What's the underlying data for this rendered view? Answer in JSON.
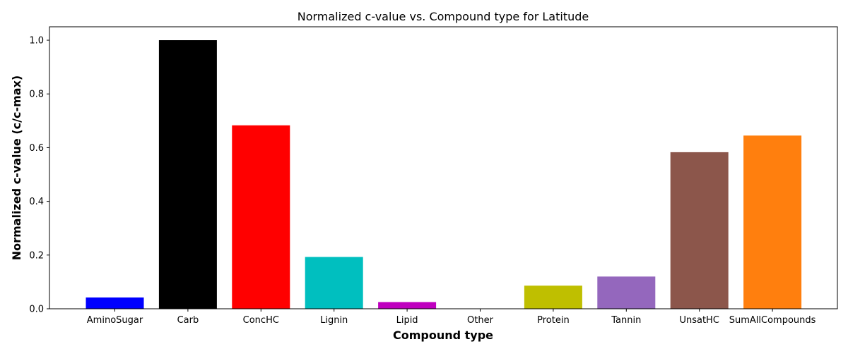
{
  "chart_data": {
    "type": "bar",
    "title": "Normalized c-value vs. Compound type for Latitude",
    "xlabel": "Compound type",
    "ylabel": "Normalized c-value (c/c-max)",
    "categories": [
      "AminoSugar",
      "Carb",
      "ConcHC",
      "Lignin",
      "Lipid",
      "Other",
      "Protein",
      "Tannin",
      "UnsatHC",
      "SumAllCompounds"
    ],
    "values": [
      0.042,
      1.0,
      0.683,
      0.193,
      0.025,
      0.0,
      0.086,
      0.12,
      0.583,
      0.645
    ],
    "colors": [
      "#0000ff",
      "#000000",
      "#ff0000",
      "#00bfbf",
      "#bf00bf",
      "#0000ff",
      "#bfbf00",
      "#9467bd",
      "#8c564b",
      "#ff7f0e"
    ],
    "yticks": [
      "0.0",
      "0.2",
      "0.4",
      "0.6",
      "0.8",
      "1.0"
    ],
    "ylim": [
      0,
      1.05
    ],
    "grid": false,
    "legend": "none"
  }
}
